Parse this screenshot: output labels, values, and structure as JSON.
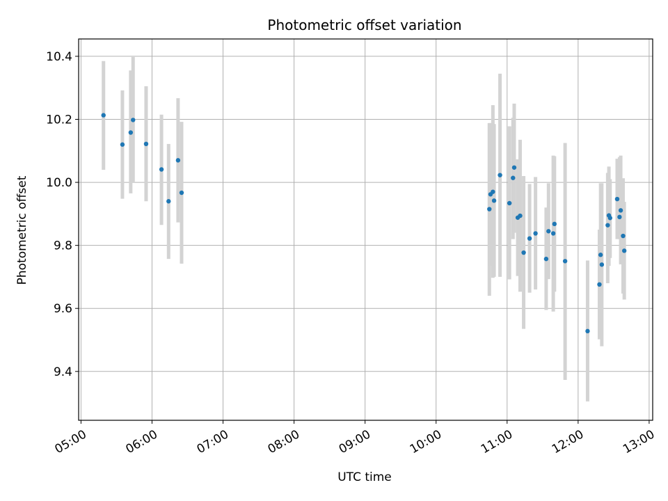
{
  "chart_data": {
    "type": "scatter",
    "title": "Photometric offset variation",
    "xlabel": "UTC time",
    "ylabel": "Photometric offset",
    "xlim": [
      "04:58",
      "13:03"
    ],
    "ylim": [
      9.245,
      10.455
    ],
    "x_ticks": [
      "05:00",
      "06:00",
      "07:00",
      "08:00",
      "09:00",
      "10:00",
      "11:00",
      "12:00",
      "13:00"
    ],
    "y_ticks": [
      9.4,
      9.6,
      9.8,
      10.0,
      10.2,
      10.4
    ],
    "grid": true,
    "colors": {
      "point": "#1f77b4",
      "errorbar": "#d3d3d3",
      "grid": "#b0b0b0"
    },
    "points": [
      {
        "t": "05:19",
        "y": 10.213,
        "lo": 10.04,
        "hi": 10.385
      },
      {
        "t": "05:35",
        "y": 10.12,
        "lo": 9.948,
        "hi": 10.292
      },
      {
        "t": "05:42",
        "y": 10.158,
        "lo": 9.965,
        "hi": 10.355
      },
      {
        "t": "05:44",
        "y": 10.198,
        "lo": 9.998,
        "hi": 10.398
      },
      {
        "t": "05:55",
        "y": 10.122,
        "lo": 9.94,
        "hi": 10.305
      },
      {
        "t": "06:08",
        "y": 10.041,
        "lo": 9.865,
        "hi": 10.215
      },
      {
        "t": "06:14",
        "y": 9.94,
        "lo": 9.757,
        "hi": 10.122
      },
      {
        "t": "06:22",
        "y": 10.07,
        "lo": 9.873,
        "hi": 10.267
      },
      {
        "t": "06:25",
        "y": 9.967,
        "lo": 9.742,
        "hi": 10.192
      },
      {
        "t": "10:45",
        "y": 9.915,
        "lo": 9.64,
        "hi": 10.188
      },
      {
        "t": "10:46",
        "y": 9.962,
        "lo": 9.735,
        "hi": 10.188
      },
      {
        "t": "10:48",
        "y": 9.97,
        "lo": 9.697,
        "hi": 10.245
      },
      {
        "t": "10:49",
        "y": 9.942,
        "lo": 9.7,
        "hi": 10.185
      },
      {
        "t": "10:54",
        "y": 10.023,
        "lo": 9.7,
        "hi": 10.345
      },
      {
        "t": "11:02",
        "y": 9.934,
        "lo": 9.692,
        "hi": 10.178
      },
      {
        "t": "11:05",
        "y": 10.014,
        "lo": 9.82,
        "hi": 10.205
      },
      {
        "t": "11:06",
        "y": 10.047,
        "lo": 9.84,
        "hi": 10.25
      },
      {
        "t": "11:09",
        "y": 9.888,
        "lo": 9.703,
        "hi": 10.073
      },
      {
        "t": "11:11",
        "y": 9.894,
        "lo": 9.653,
        "hi": 10.135
      },
      {
        "t": "11:14",
        "y": 9.777,
        "lo": 9.535,
        "hi": 10.02
      },
      {
        "t": "11:19",
        "y": 9.822,
        "lo": 9.65,
        "hi": 9.995
      },
      {
        "t": "11:24",
        "y": 9.838,
        "lo": 9.66,
        "hi": 10.017
      },
      {
        "t": "11:33",
        "y": 9.757,
        "lo": 9.595,
        "hi": 9.92
      },
      {
        "t": "11:35",
        "y": 9.845,
        "lo": 9.693,
        "hi": 9.997
      },
      {
        "t": "11:39",
        "y": 9.838,
        "lo": 9.59,
        "hi": 10.085
      },
      {
        "t": "11:40",
        "y": 9.868,
        "lo": 9.653,
        "hi": 10.083
      },
      {
        "t": "11:49",
        "y": 9.75,
        "lo": 9.373,
        "hi": 10.125
      },
      {
        "t": "12:08",
        "y": 9.528,
        "lo": 9.305,
        "hi": 9.752
      },
      {
        "t": "12:18",
        "y": 9.676,
        "lo": 9.502,
        "hi": 9.85
      },
      {
        "t": "12:19",
        "y": 9.77,
        "lo": 9.537,
        "hi": 9.997
      },
      {
        "t": "12:20",
        "y": 9.739,
        "lo": 9.48,
        "hi": 9.997
      },
      {
        "t": "12:25",
        "y": 9.864,
        "lo": 9.68,
        "hi": 10.03
      },
      {
        "t": "12:26",
        "y": 9.895,
        "lo": 9.735,
        "hi": 10.05
      },
      {
        "t": "12:27",
        "y": 9.887,
        "lo": 9.76,
        "hi": 10.01
      },
      {
        "t": "12:33",
        "y": 9.947,
        "lo": 9.82,
        "hi": 10.075
      },
      {
        "t": "12:35",
        "y": 9.89,
        "lo": 9.82,
        "hi": 10.08
      },
      {
        "t": "12:36",
        "y": 9.911,
        "lo": 9.74,
        "hi": 10.085
      },
      {
        "t": "12:38",
        "y": 9.83,
        "lo": 9.647,
        "hi": 10.013
      },
      {
        "t": "12:39",
        "y": 9.783,
        "lo": 9.628,
        "hi": 9.938
      }
    ]
  }
}
